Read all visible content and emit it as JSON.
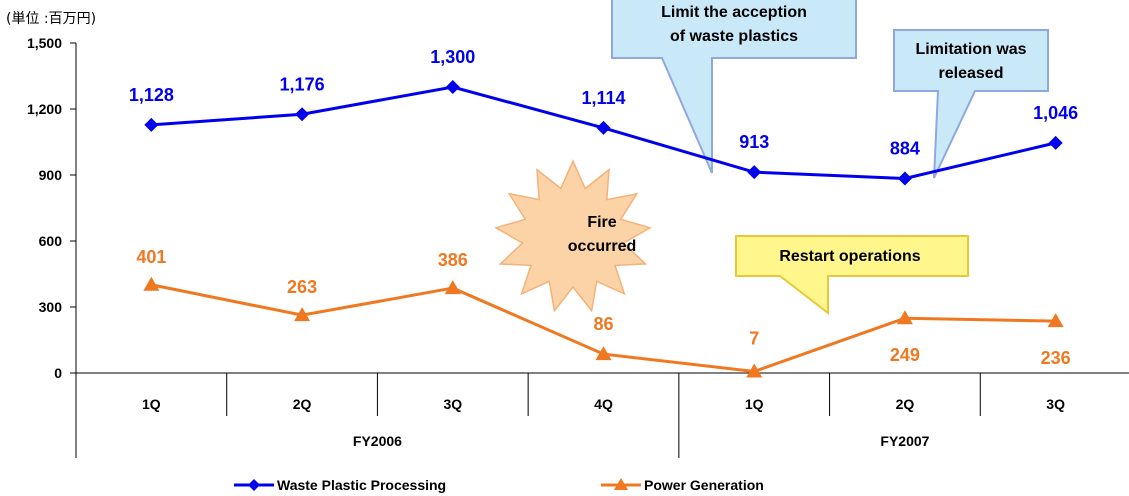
{
  "chart_data": {
    "type": "line",
    "unit_label": "(単位 :百万円)",
    "categories": [
      "1Q",
      "2Q",
      "3Q",
      "4Q",
      "1Q",
      "2Q",
      "3Q"
    ],
    "groups": [
      {
        "label": "FY2006",
        "span": [
          0,
          3
        ]
      },
      {
        "label": "FY2007",
        "span": [
          4,
          6
        ]
      }
    ],
    "y_ticks": [
      "0",
      "300",
      "600",
      "900",
      "1,200",
      "1,500"
    ],
    "ylim": [
      0,
      1500
    ],
    "grid": false,
    "legend_position": "bottom",
    "series": [
      {
        "name": "Waste Plastic Processing",
        "color": "#0000ee",
        "marker": "diamond",
        "values": [
          1128,
          1176,
          1300,
          1114,
          913,
          884,
          1046
        ],
        "labels": [
          "1,128",
          "1,176",
          "1,300",
          "1,114",
          "913",
          "884",
          "1,046"
        ]
      },
      {
        "name": "Power Generation",
        "color": "#f07820",
        "marker": "triangle",
        "values": [
          401,
          263,
          386,
          86,
          7,
          249,
          236
        ],
        "labels": [
          "401",
          "263",
          "386",
          "86",
          "7",
          "249",
          "236"
        ]
      }
    ],
    "annotations": [
      {
        "text": [
          "Limit the acception",
          "of waste plastics"
        ],
        "style": "callout",
        "fill": "#c9e9f9",
        "border": "#8fa8e0",
        "points_to": {
          "series": 0,
          "between": [
            3,
            4
          ]
        }
      },
      {
        "text": [
          "Limitation was",
          "released"
        ],
        "style": "callout",
        "fill": "#c9e9f9",
        "border": "#8fa8e0",
        "points_to": {
          "series": 0,
          "index": 5
        }
      },
      {
        "text": [
          "Fire",
          "occurred"
        ],
        "style": "burst",
        "fill": "#fcd3a6",
        "border": "#f3b27a"
      },
      {
        "text": [
          "Restart operations"
        ],
        "style": "callout",
        "fill": "#fff68c",
        "border": "#e8c83a",
        "points_to": {
          "series": 1,
          "between": [
            4,
            5
          ]
        }
      }
    ]
  }
}
